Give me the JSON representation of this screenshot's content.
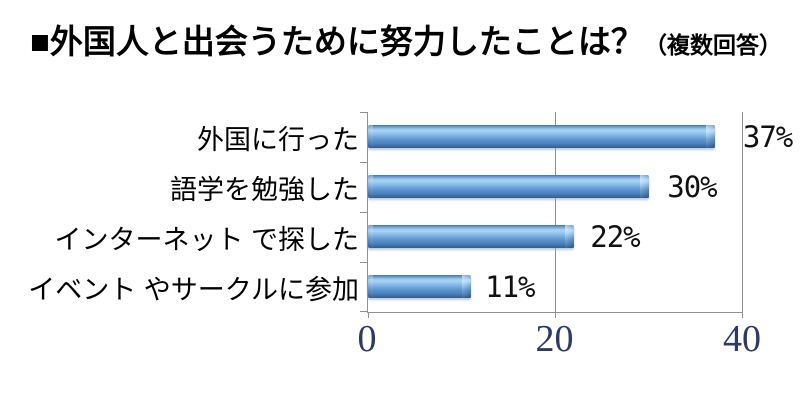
{
  "title": {
    "text": "■外国人と出会うために努力したことは？",
    "suffix": "（複数回答）"
  },
  "chart_data": {
    "type": "bar",
    "orientation": "horizontal",
    "title": "■外国人と出会うために努力したことは？（複数回答）",
    "categories": [
      "外国に行った",
      "語学を勉強した",
      "インターネット で探した",
      "イベント やサークルに参加"
    ],
    "values": [
      37,
      30,
      22,
      11
    ],
    "value_labels": [
      "37%",
      "30%",
      "22%",
      "11%"
    ],
    "xlabel": "",
    "ylabel": "",
    "xlim": [
      0,
      40
    ],
    "x_ticks": [
      "0",
      "20",
      "40"
    ],
    "x_tick_values": [
      0,
      20,
      40
    ],
    "legend": "none",
    "gridlines": "vertical at 20 and 40",
    "colors": {
      "bar_main": "#5b9bd5",
      "bar_highlight": "#a9d4f4",
      "bar_dark": "#305d92",
      "axis_line": "#909090",
      "value_label": "#111111",
      "category_label": "#000000",
      "tick_label": "#2d3a66",
      "title": "#000000",
      "background": "#ffffff"
    }
  }
}
